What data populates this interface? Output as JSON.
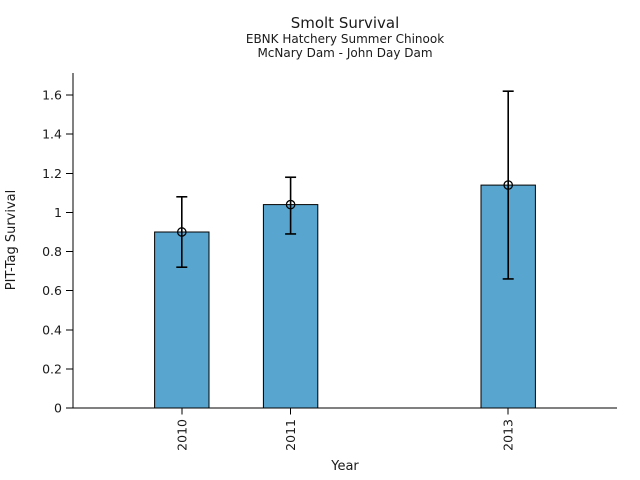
{
  "chart_data": {
    "type": "bar",
    "title": "Smolt Survival",
    "subtitle_line1": "EBNK Hatchery Summer Chinook",
    "subtitle_line2": "McNary Dam - John Day Dam",
    "xlabel": "Year",
    "ylabel": "PIT-Tag Survival",
    "categories": [
      "2010",
      "2011",
      "2013"
    ],
    "x_values": [
      2010,
      2011,
      2013
    ],
    "series": [
      {
        "name": "PIT-Tag Survival",
        "values": [
          0.9,
          1.04,
          1.14
        ],
        "error_low": [
          0.72,
          0.89,
          0.66
        ],
        "error_high": [
          1.08,
          1.18,
          1.62
        ]
      }
    ],
    "xlim": [
      2009,
      2014
    ],
    "ylim": [
      0,
      1.713
    ],
    "ytick_values": [
      0,
      0.2,
      0.4,
      0.6,
      0.8,
      1.0,
      1.2,
      1.4,
      1.6
    ],
    "ytick_labels": [
      "0",
      "0.2",
      "0.4",
      "0.6",
      "0.8",
      "1",
      "1.2",
      "1.4",
      "1.6"
    ],
    "xtick_rotation_deg": 90,
    "bar_width_years": 0.5,
    "grid": false,
    "marker": "open-circle",
    "colors": {
      "bar_fill": "#58a6cf",
      "bar_edge": "#000000",
      "error_bar": "#000000",
      "marker_edge": "#000000",
      "axis": "#000000",
      "background": "#ffffff"
    }
  }
}
